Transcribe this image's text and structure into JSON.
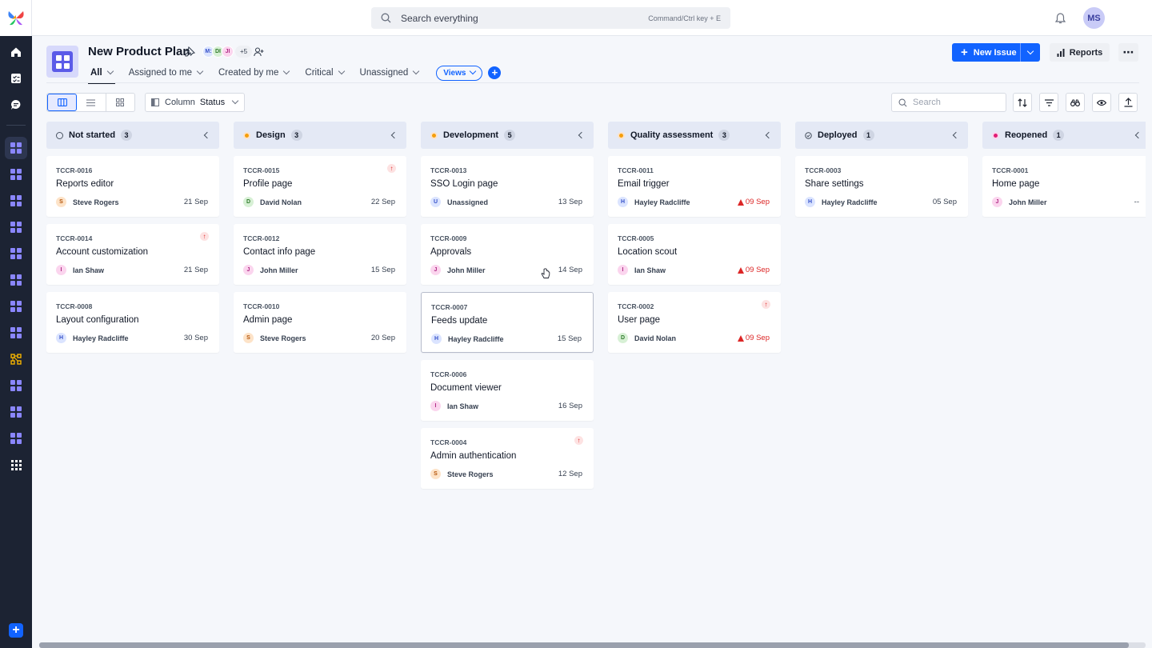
{
  "topbar": {
    "search_placeholder": "Search everything",
    "search_hint": "Command/Ctrl key + E",
    "user_initials": "MS"
  },
  "project": {
    "title": "New Product Plan",
    "members": [
      "M:",
      "DI",
      "JI"
    ],
    "members_more": "+5"
  },
  "tabs": [
    {
      "label": "All"
    },
    {
      "label": "Assigned to me"
    },
    {
      "label": "Created by me"
    },
    {
      "label": "Critical"
    },
    {
      "label": "Unassigned"
    }
  ],
  "views_label": "Views",
  "actions": {
    "new_issue": "New Issue",
    "reports": "Reports"
  },
  "toolbar": {
    "column_label": "Column",
    "column_value": "Status",
    "search_placeholder": "Search"
  },
  "colors": {
    "accent": "#1163ff",
    "overdue": "#dc2626"
  },
  "columns": [
    {
      "name": "Not started",
      "count": "3",
      "cards": [
        {
          "id": "TCCR-0016",
          "title": "Reports editor",
          "initial": "S",
          "assignee": "Steve Rogers",
          "date": "21 Sep"
        },
        {
          "id": "TCCR-0014",
          "title": "Account customization",
          "initial": "I",
          "assignee": "Ian Shaw",
          "date": "21 Sep"
        },
        {
          "id": "TCCR-0008",
          "title": "Layout configuration",
          "initial": "H",
          "assignee": "Hayley Radcliffe",
          "date": "30 Sep"
        }
      ]
    },
    {
      "name": "Design",
      "count": "3",
      "cards": [
        {
          "id": "TCCR-0015",
          "title": "Profile page",
          "initial": "D",
          "assignee": "David Nolan",
          "date": "22 Sep"
        },
        {
          "id": "TCCR-0012",
          "title": "Contact info page",
          "initial": "J",
          "assignee": "John Miller",
          "date": "15 Sep"
        },
        {
          "id": "TCCR-0010",
          "title": "Admin page",
          "initial": "S",
          "assignee": "Steve Rogers",
          "date": "20 Sep"
        }
      ]
    },
    {
      "name": "Development",
      "count": "5",
      "cards": [
        {
          "id": "TCCR-0013",
          "title": "SSO Login page",
          "initial": "U",
          "assignee": "Unassigned",
          "date": "13 Sep"
        },
        {
          "id": "TCCR-0009",
          "title": "Approvals",
          "initial": "J",
          "assignee": "John Miller",
          "date": "14 Sep"
        },
        {
          "id": "TCCR-0007",
          "title": "Feeds update",
          "initial": "H",
          "assignee": "Hayley Radcliffe",
          "date": "15 Sep"
        },
        {
          "id": "TCCR-0006",
          "title": "Document viewer",
          "initial": "I",
          "assignee": "Ian Shaw",
          "date": "16 Sep"
        },
        {
          "id": "TCCR-0004",
          "title": "Admin authentication",
          "initial": "S",
          "assignee": "Steve Rogers",
          "date": "12 Sep"
        }
      ]
    },
    {
      "name": "Quality assessment",
      "count": "3",
      "cards": [
        {
          "id": "TCCR-0011",
          "title": "Email trigger",
          "initial": "H",
          "assignee": "Hayley Radcliffe",
          "date": "09 Sep"
        },
        {
          "id": "TCCR-0005",
          "title": "Location scout",
          "initial": "I",
          "assignee": "Ian Shaw",
          "date": "09 Sep"
        },
        {
          "id": "TCCR-0002",
          "title": "User page",
          "initial": "D",
          "assignee": "David Nolan",
          "date": "09 Sep"
        }
      ]
    },
    {
      "name": "Deployed",
      "count": "1",
      "cards": [
        {
          "id": "TCCR-0003",
          "title": "Share settings",
          "initial": "H",
          "assignee": "Hayley Radcliffe",
          "date": "05 Sep"
        }
      ]
    },
    {
      "name": "Reopened",
      "count": "1",
      "cards": [
        {
          "id": "TCCR-0001",
          "title": "Home page",
          "initial": "J",
          "assignee": "John Miller",
          "date": "--"
        }
      ]
    }
  ]
}
